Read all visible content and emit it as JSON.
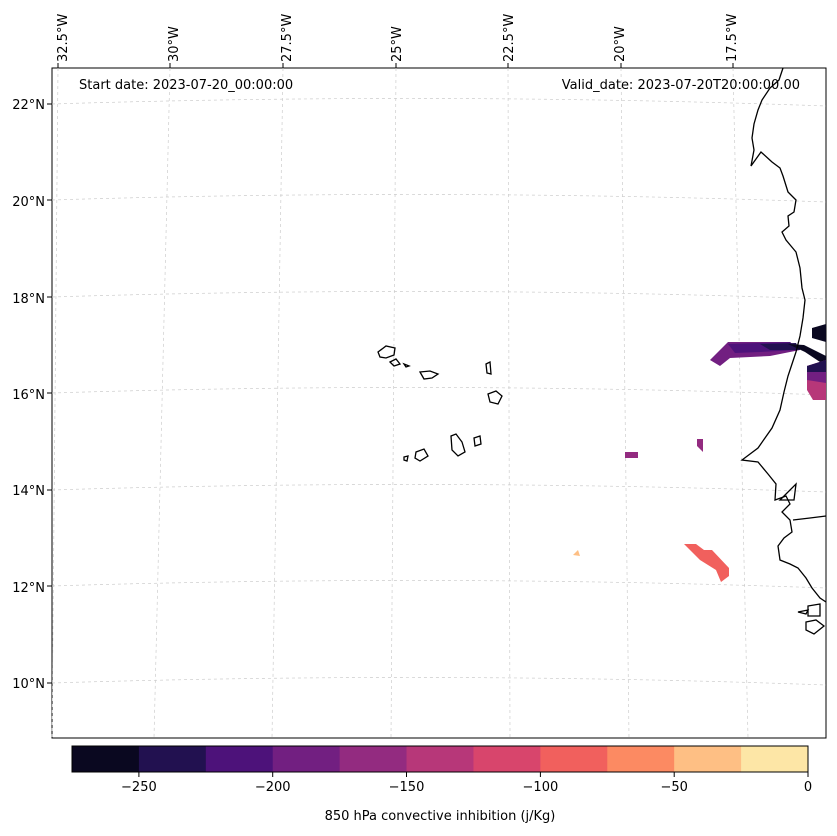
{
  "map": {
    "start_date": "Start date: 2023-07-20_00:00:00",
    "valid_date": "Valid_date: 2023-07-20T20:00:00.00",
    "lon_labels": [
      "32.5°W",
      "30°W",
      "27.5°W",
      "25°W",
      "22.5°W",
      "20°W",
      "17.5°W"
    ],
    "lat_labels": [
      "22°N",
      "20°N",
      "18°N",
      "16°N",
      "14°N",
      "12°N",
      "10°N"
    ]
  },
  "colorbar": {
    "label": "850 hPa convective inhibition (j/Kg)",
    "ticks": [
      "−250",
      "−200",
      "−150",
      "−100",
      "−50",
      "0"
    ],
    "colors": [
      "#0a0820",
      "#221150",
      "#4d127a",
      "#721f81",
      "#932b80",
      "#b73779",
      "#d8456c",
      "#f1605d",
      "#fc8a62",
      "#febf84",
      "#fde6a6"
    ]
  }
}
